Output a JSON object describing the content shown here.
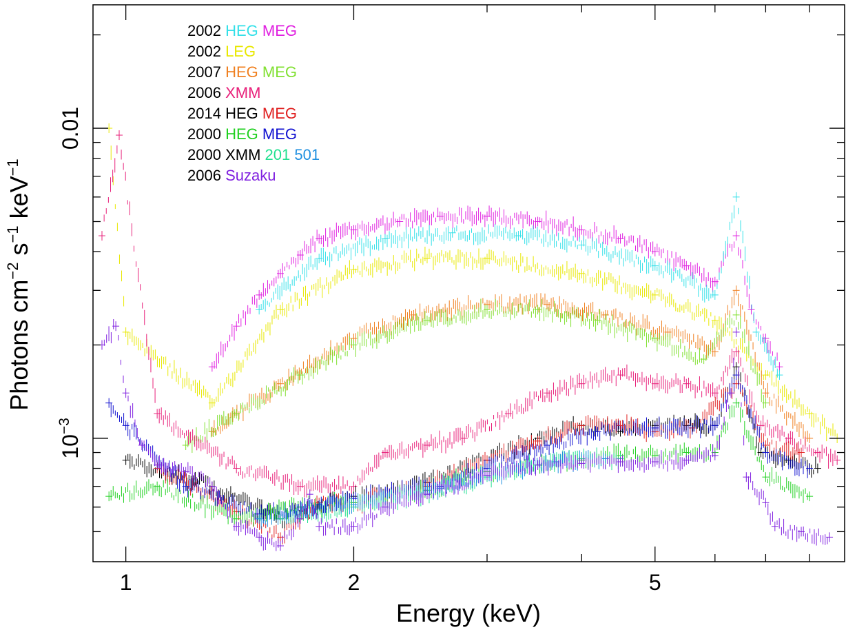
{
  "chart_data": {
    "type": "scatter",
    "title": "",
    "xlabel": "Energy (keV)",
    "ylabel_parts": {
      "a": "Photons cm",
      "b": "−2",
      "c": " s",
      "d": "−1",
      "e": " keV",
      "f": "−1"
    },
    "x_scale": "log",
    "y_scale": "log",
    "xlim": [
      0.905,
      8.9
    ],
    "ylim": [
      0.0004,
      0.025
    ],
    "x_ticks": [
      {
        "value": 1,
        "label": "1"
      },
      {
        "value": 2,
        "label": "2"
      },
      {
        "value": 5,
        "label": "5"
      }
    ],
    "y_ticks": [
      {
        "value": 0.001,
        "label_base": "10",
        "label_exp": "−3"
      },
      {
        "value": 0.01,
        "label_base": "0.01",
        "label_exp": ""
      }
    ],
    "x_minor_ticks": [
      3,
      4,
      6,
      7,
      8
    ],
    "y_minor_ticks": [
      0.0005,
      0.0006,
      0.0007,
      0.0008,
      0.0009,
      0.002,
      0.003,
      0.004,
      0.005,
      0.006,
      0.007,
      0.008,
      0.009,
      0.02
    ],
    "grid": false,
    "legend": {
      "position": "top-left",
      "rows": [
        {
          "year": "2002",
          "parts": [
            {
              "text": "HEG",
              "color": "#33e0e8"
            },
            {
              "text": "MEG",
              "color": "#e020e0"
            }
          ]
        },
        {
          "year": "2002",
          "parts": [
            {
              "text": "LEG",
              "color": "#e8e800"
            }
          ]
        },
        {
          "year": "2007",
          "parts": [
            {
              "text": "HEG",
              "color": "#f08020"
            },
            {
              "text": "MEG",
              "color": "#80e030"
            }
          ]
        },
        {
          "year": "2006",
          "parts": [
            {
              "text": "XMM",
              "color": "#e8207a"
            }
          ]
        },
        {
          "year": "2014",
          "parts": [
            {
              "text": "HEG",
              "color": "#000000"
            },
            {
              "text": "MEG",
              "color": "#e02020"
            }
          ]
        },
        {
          "year": "2000",
          "parts": [
            {
              "text": "HEG",
              "color": "#20d020"
            },
            {
              "text": "MEG",
              "color": "#1010d0"
            }
          ]
        },
        {
          "year": "2000",
          "parts": [
            {
              "text": "XMM",
              "color": "#000000"
            },
            {
              "text": "201",
              "color": "#20e090"
            },
            {
              "text": "501",
              "color": "#2090e0"
            }
          ]
        },
        {
          "year": "2006",
          "parts": [
            {
              "text": "Suzaku",
              "color": "#8020e0"
            }
          ]
        }
      ]
    },
    "series": [
      {
        "name": "2002 MEG",
        "color": "#e020e0",
        "points": [
          [
            1.3,
            0.0017
          ],
          [
            1.4,
            0.0023
          ],
          [
            1.5,
            0.0029
          ],
          [
            1.6,
            0.0034
          ],
          [
            1.7,
            0.0039
          ],
          [
            1.8,
            0.0044
          ],
          [
            2.0,
            0.0047
          ],
          [
            2.3,
            0.005
          ],
          [
            2.6,
            0.0052
          ],
          [
            3.0,
            0.0052
          ],
          [
            3.5,
            0.005
          ],
          [
            4.0,
            0.0047
          ],
          [
            4.5,
            0.0044
          ],
          [
            5.0,
            0.004
          ],
          [
            5.5,
            0.0036
          ],
          [
            6.0,
            0.0032
          ],
          [
            6.4,
            0.0045
          ],
          [
            6.7,
            0.0026
          ],
          [
            7.0,
            0.0021
          ],
          [
            7.3,
            0.0017
          ]
        ]
      },
      {
        "name": "2002 HEG",
        "color": "#33e0e8",
        "points": [
          [
            1.5,
            0.0026
          ],
          [
            1.8,
            0.0038
          ],
          [
            2.2,
            0.0044
          ],
          [
            2.7,
            0.0046
          ],
          [
            3.3,
            0.0045
          ],
          [
            4.0,
            0.0042
          ],
          [
            5.0,
            0.0036
          ],
          [
            6.0,
            0.0029
          ],
          [
            6.4,
            0.006
          ],
          [
            6.8,
            0.0022
          ],
          [
            7.3,
            0.0016
          ]
        ]
      },
      {
        "name": "2002 LEG",
        "color": "#e8e800",
        "points": [
          [
            0.95,
            0.01
          ],
          [
            1.0,
            0.0022
          ],
          [
            1.3,
            0.0013
          ],
          [
            1.6,
            0.0026
          ],
          [
            2.0,
            0.0035
          ],
          [
            2.5,
            0.0038
          ],
          [
            3.0,
            0.0038
          ],
          [
            4.0,
            0.0034
          ],
          [
            5.0,
            0.0029
          ],
          [
            6.0,
            0.0024
          ],
          [
            7.0,
            0.0016
          ],
          [
            8.0,
            0.0012
          ],
          [
            8.7,
            0.001
          ]
        ]
      },
      {
        "name": "2007 HEG",
        "color": "#f08020",
        "points": [
          [
            1.3,
            0.00105
          ],
          [
            1.6,
            0.0015
          ],
          [
            2.0,
            0.0021
          ],
          [
            2.4,
            0.0025
          ],
          [
            3.0,
            0.0027
          ],
          [
            3.6,
            0.0027
          ],
          [
            4.3,
            0.0025
          ],
          [
            5.2,
            0.0022
          ],
          [
            6.0,
            0.0019
          ],
          [
            6.4,
            0.003
          ],
          [
            7.0,
            0.0014
          ],
          [
            8.0,
            0.001
          ]
        ]
      },
      {
        "name": "2007 MEG",
        "color": "#80e030",
        "points": [
          [
            1.2,
            0.00095
          ],
          [
            1.4,
            0.0012
          ],
          [
            1.7,
            0.0016
          ],
          [
            2.0,
            0.002
          ],
          [
            2.5,
            0.0024
          ],
          [
            3.0,
            0.0026
          ],
          [
            3.5,
            0.0026
          ],
          [
            4.2,
            0.0024
          ],
          [
            5.0,
            0.0021
          ],
          [
            5.8,
            0.0018
          ],
          [
            6.4,
            0.0025
          ],
          [
            7.0,
            0.0013
          ]
        ]
      },
      {
        "name": "2006 XMM",
        "color": "#e8207a",
        "points": [
          [
            0.93,
            0.0045
          ],
          [
            0.98,
            0.0095
          ],
          [
            1.1,
            0.0012
          ],
          [
            1.4,
            0.0008
          ],
          [
            1.7,
            0.0007
          ],
          [
            2.0,
            0.0007
          ],
          [
            2.2,
            0.0009
          ],
          [
            2.5,
            0.00095
          ],
          [
            2.8,
            0.001
          ],
          [
            3.2,
            0.0012
          ],
          [
            3.6,
            0.0014
          ],
          [
            4.0,
            0.0015
          ],
          [
            4.5,
            0.0016
          ],
          [
            5.0,
            0.0015
          ],
          [
            5.5,
            0.0015
          ],
          [
            6.0,
            0.0014
          ],
          [
            6.4,
            0.0019
          ],
          [
            6.9,
            0.0011
          ],
          [
            7.5,
            0.001
          ],
          [
            8.2,
            0.0009
          ],
          [
            8.7,
            0.00085
          ]
        ]
      },
      {
        "name": "2014 HEG",
        "color": "#000000",
        "points": [
          [
            1.0,
            0.00085
          ],
          [
            1.3,
            0.0007
          ],
          [
            1.6,
            0.00055
          ],
          [
            2.0,
            0.00065
          ],
          [
            2.5,
            0.00072
          ],
          [
            3.0,
            0.00085
          ],
          [
            3.5,
            0.001
          ],
          [
            4.0,
            0.0011
          ],
          [
            4.5,
            0.00105
          ],
          [
            5.0,
            0.0011
          ],
          [
            5.5,
            0.0011
          ],
          [
            6.0,
            0.0011
          ],
          [
            6.4,
            0.0017
          ],
          [
            6.9,
            0.0009
          ],
          [
            7.5,
            0.00085
          ],
          [
            8.2,
            0.0008
          ]
        ]
      },
      {
        "name": "2014 MEG",
        "color": "#e02020",
        "points": [
          [
            1.1,
            0.0008
          ],
          [
            1.4,
            0.00058
          ],
          [
            1.6,
            0.00048
          ],
          [
            1.8,
            0.00062
          ],
          [
            2.0,
            0.00062
          ],
          [
            2.5,
            0.0007
          ],
          [
            3.0,
            0.00085
          ],
          [
            3.5,
            0.00098
          ],
          [
            4.0,
            0.0011
          ],
          [
            4.5,
            0.0011
          ],
          [
            5.0,
            0.00105
          ],
          [
            5.6,
            0.00108
          ],
          [
            6.4,
            0.0015
          ],
          [
            7.0,
            0.00095
          ],
          [
            7.8,
            0.0009
          ]
        ]
      },
      {
        "name": "2000 HEG",
        "color": "#20d020",
        "points": [
          [
            0.95,
            0.00065
          ],
          [
            1.1,
            0.0007
          ],
          [
            1.4,
            0.00055
          ],
          [
            1.7,
            0.0006
          ],
          [
            2.0,
            0.00062
          ],
          [
            2.5,
            0.00068
          ],
          [
            3.0,
            0.00078
          ],
          [
            3.5,
            0.00082
          ],
          [
            4.0,
            0.00085
          ],
          [
            4.5,
            0.00088
          ],
          [
            5.0,
            0.00088
          ],
          [
            5.5,
            0.0009
          ],
          [
            6.0,
            0.0009
          ],
          [
            6.4,
            0.0013
          ],
          [
            7.0,
            0.00075
          ],
          [
            8.0,
            0.00065
          ]
        ]
      },
      {
        "name": "2000 MEG",
        "color": "#1010d0",
        "points": [
          [
            0.95,
            0.0013
          ],
          [
            1.0,
            0.0011
          ],
          [
            1.2,
            0.0007
          ],
          [
            1.5,
            0.00057
          ],
          [
            1.8,
            0.00061
          ],
          [
            2.0,
            0.00064
          ],
          [
            2.6,
            0.0007
          ],
          [
            3.0,
            0.0008
          ],
          [
            3.6,
            0.00095
          ],
          [
            4.2,
            0.00105
          ],
          [
            5.0,
            0.00108
          ],
          [
            6.0,
            0.0011
          ],
          [
            6.4,
            0.0016
          ],
          [
            7.0,
            0.0009
          ],
          [
            8.0,
            0.0008
          ]
        ]
      },
      {
        "name": "2000 XMM 201",
        "color": "#20e090",
        "points": [
          [
            1.6,
            0.00055
          ],
          [
            2.0,
            0.0006
          ],
          [
            2.5,
            0.00066
          ],
          [
            3.0,
            0.00075
          ],
          [
            3.5,
            0.00082
          ],
          [
            4.0,
            0.00086
          ],
          [
            4.5,
            0.00086
          ]
        ]
      },
      {
        "name": "2000 XMM 501",
        "color": "#2090e0",
        "points": [
          [
            1.5,
            0.00055
          ],
          [
            2.0,
            0.00061
          ],
          [
            2.6,
            0.00069
          ],
          [
            3.0,
            0.00076
          ],
          [
            3.7,
            0.00084
          ],
          [
            4.3,
            0.00086
          ]
        ]
      },
      {
        "name": "2006 Suzaku",
        "color": "#8020e0",
        "points": [
          [
            0.93,
            0.002
          ],
          [
            0.97,
            0.0023
          ],
          [
            1.0,
            0.0014
          ],
          [
            1.05,
            0.00095
          ],
          [
            1.1,
            0.00082
          ],
          [
            1.2,
            0.00078
          ],
          [
            1.3,
            0.0007
          ],
          [
            1.4,
            0.00052
          ],
          [
            1.5,
            0.00048
          ],
          [
            1.6,
            0.00045
          ],
          [
            1.7,
            0.00055
          ],
          [
            1.75,
            0.00066
          ],
          [
            1.8,
            0.00052
          ],
          [
            2.0,
            0.00052
          ],
          [
            2.2,
            0.0006
          ],
          [
            2.5,
            0.00066
          ],
          [
            3.0,
            0.00076
          ],
          [
            3.5,
            0.00082
          ],
          [
            4.0,
            0.00083
          ],
          [
            4.5,
            0.00084
          ],
          [
            5.0,
            0.00084
          ],
          [
            5.5,
            0.00085
          ],
          [
            6.0,
            0.00088
          ],
          [
            6.3,
            0.0014
          ],
          [
            6.4,
            0.0022
          ],
          [
            6.6,
            0.00075
          ],
          [
            7.0,
            0.00062
          ],
          [
            7.2,
            0.00052
          ],
          [
            7.8,
            0.0005
          ],
          [
            8.5,
            0.00048
          ]
        ]
      }
    ]
  }
}
